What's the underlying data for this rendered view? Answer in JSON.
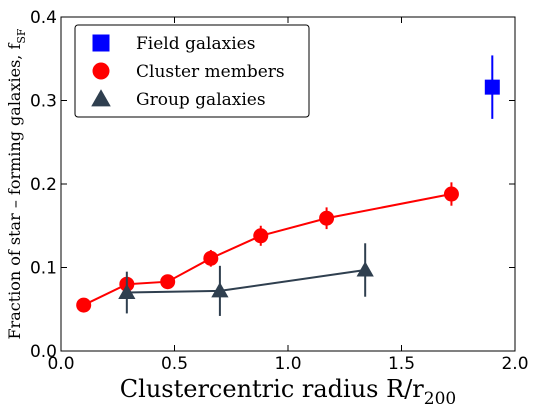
{
  "chart_data": {
    "type": "scatter",
    "xlabel": "Clustercentric radius R/r",
    "xlabel_sub": "200",
    "ylabel": "Fraction of star – forming galaxies, f",
    "ylabel_sub": "SF",
    "xlim": [
      0.0,
      2.0
    ],
    "ylim": [
      0.0,
      0.4
    ],
    "xticks": [
      0.0,
      0.5,
      1.0,
      1.5,
      2.0
    ],
    "xtick_labels": [
      "0.0",
      "0.5",
      "1.0",
      "1.5",
      "2.0"
    ],
    "yticks": [
      0.0,
      0.1,
      0.2,
      0.3,
      0.4
    ],
    "ytick_labels": [
      "0.0",
      "0.1",
      "0.2",
      "0.3",
      "0.4"
    ],
    "grid": false,
    "legend_position": "top-left",
    "series": [
      {
        "name": "Field galaxies",
        "marker": "square",
        "color": "#0000ff",
        "line": false,
        "points": [
          {
            "x": 1.9,
            "y": 0.316,
            "err": 0.038
          }
        ]
      },
      {
        "name": "Cluster members",
        "marker": "circle",
        "color": "#ff0000",
        "line": true,
        "points": [
          {
            "x": 0.1,
            "y": 0.055,
            "err": 0.0
          },
          {
            "x": 0.29,
            "y": 0.08,
            "err": 0.008
          },
          {
            "x": 0.47,
            "y": 0.083,
            "err": 0.008
          },
          {
            "x": 0.66,
            "y": 0.111,
            "err": 0.01
          },
          {
            "x": 0.88,
            "y": 0.138,
            "err": 0.012
          },
          {
            "x": 1.17,
            "y": 0.159,
            "err": 0.013
          },
          {
            "x": 1.72,
            "y": 0.188,
            "err": 0.014
          }
        ]
      },
      {
        "name": "Group galaxies",
        "marker": "triangle",
        "color": "#2f3f4f",
        "line": true,
        "points": [
          {
            "x": 0.29,
            "y": 0.07,
            "err": 0.025
          },
          {
            "x": 0.7,
            "y": 0.072,
            "err": 0.03
          },
          {
            "x": 1.34,
            "y": 0.097,
            "err": 0.032
          }
        ]
      }
    ]
  }
}
